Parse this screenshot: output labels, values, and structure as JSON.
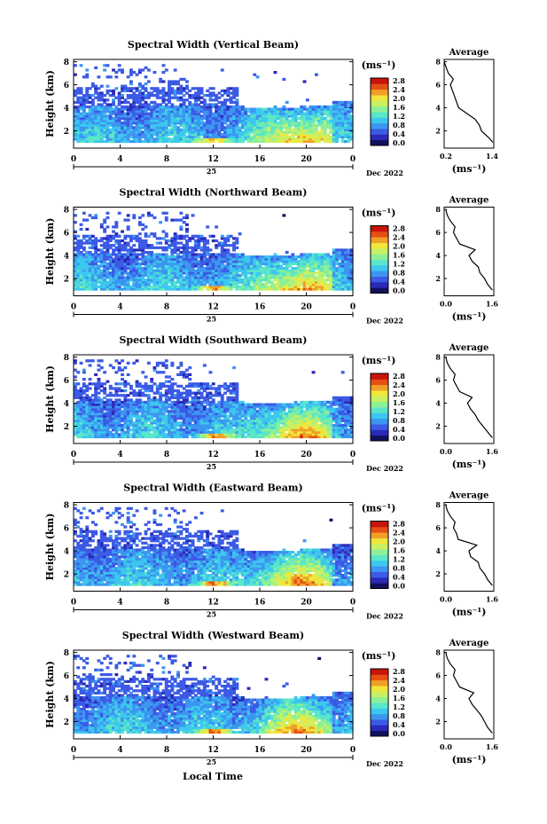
{
  "chart_data": {
    "type": "heatmap",
    "common": {
      "ylabel": "Height (km)",
      "y_ticks": [
        2,
        4,
        6,
        8
      ],
      "ylim": [
        0.5,
        8.2
      ],
      "x_ticks": [
        "0",
        "4",
        "8",
        "12",
        "16",
        "20",
        "0"
      ],
      "date_day": "25",
      "date_label": "Dec 2022",
      "xlabel": "Local Time",
      "colorbar_unit": "(ms⁻¹)",
      "colorbar_ticks": [
        "0.0",
        "0.4",
        "0.8",
        "1.2",
        "1.6",
        "2.0",
        "2.4",
        "2.8"
      ],
      "avg_title": "Average",
      "avg_unit": "(ms⁻¹)",
      "colormap": [
        "#11115e",
        "#2a2ab8",
        "#3c5ae6",
        "#3c96f0",
        "#3cc8ee",
        "#5ae6c8",
        "#8cf096",
        "#c8f064",
        "#f0e63c",
        "#f0a028",
        "#e65014",
        "#c8140a"
      ]
    },
    "panels": [
      {
        "title": "Spectral Width (Vertical Beam)",
        "avg_xticks": [
          "0.2",
          "1.4"
        ],
        "avg_xlim": [
          0.2,
          1.4
        ],
        "profile": {
          "height": [
            1.0,
            1.5,
            2.0,
            2.5,
            3.0,
            3.5,
            4.0,
            4.5,
            5.0,
            5.5,
            6.0,
            6.5,
            7.0,
            7.5,
            8.0
          ],
          "value": [
            1.38,
            1.25,
            1.1,
            1.05,
            0.95,
            0.75,
            0.55,
            0.5,
            0.45,
            0.4,
            0.35,
            0.42,
            0.3,
            0.25,
            0.2
          ]
        }
      },
      {
        "title": "Spectral Width (Northward Beam)",
        "avg_xticks": [
          "0.0",
          "1.6"
        ],
        "avg_xlim": [
          0.0,
          1.6
        ],
        "profile": {
          "height": [
            1.0,
            1.5,
            2.0,
            2.5,
            3.0,
            3.5,
            4.0,
            4.5,
            5.0,
            5.5,
            6.0,
            6.5,
            7.0,
            7.5,
            8.0
          ],
          "value": [
            1.55,
            1.4,
            1.3,
            1.15,
            1.1,
            0.9,
            0.8,
            1.0,
            0.5,
            0.4,
            0.3,
            0.35,
            0.2,
            0.1,
            0.05
          ]
        }
      },
      {
        "title": "Spectral Width (Southward Beam)",
        "avg_xticks": [
          "0.0",
          "1.6"
        ],
        "avg_xlim": [
          0.0,
          1.6
        ],
        "profile": {
          "height": [
            1.0,
            1.5,
            2.0,
            2.5,
            3.0,
            3.5,
            4.0,
            4.5,
            5.0,
            5.5,
            6.0,
            6.5,
            7.0,
            7.5,
            8.0
          ],
          "value": [
            1.55,
            1.4,
            1.25,
            1.1,
            1.0,
            0.85,
            0.75,
            0.9,
            0.5,
            0.4,
            0.3,
            0.35,
            0.2,
            0.1,
            0.05
          ]
        }
      },
      {
        "title": "Spectral Width (Eastward Beam)",
        "avg_xticks": [
          "0.0",
          "1.6"
        ],
        "avg_xlim": [
          0.0,
          1.6
        ],
        "profile": {
          "height": [
            1.0,
            1.5,
            2.0,
            2.5,
            3.0,
            3.5,
            4.0,
            4.5,
            5.0,
            5.5,
            6.0,
            6.5,
            7.0,
            7.5,
            8.0
          ],
          "value": [
            1.55,
            1.4,
            1.3,
            1.15,
            1.1,
            0.85,
            0.8,
            1.05,
            0.45,
            0.4,
            0.3,
            0.35,
            0.2,
            0.1,
            0.05
          ]
        }
      },
      {
        "title": "Spectral Width (Westward Beam)",
        "avg_xticks": [
          "0.0",
          "1.6"
        ],
        "avg_xlim": [
          0.0,
          1.6
        ],
        "profile": {
          "height": [
            1.0,
            1.5,
            2.0,
            2.5,
            3.0,
            3.5,
            4.0,
            4.5,
            5.0,
            5.5,
            6.0,
            6.5,
            7.0,
            7.5,
            8.0
          ],
          "value": [
            1.55,
            1.4,
            1.3,
            1.2,
            1.05,
            0.9,
            0.8,
            0.95,
            0.5,
            0.4,
            0.3,
            0.35,
            0.2,
            0.1,
            0.05
          ]
        }
      }
    ]
  }
}
